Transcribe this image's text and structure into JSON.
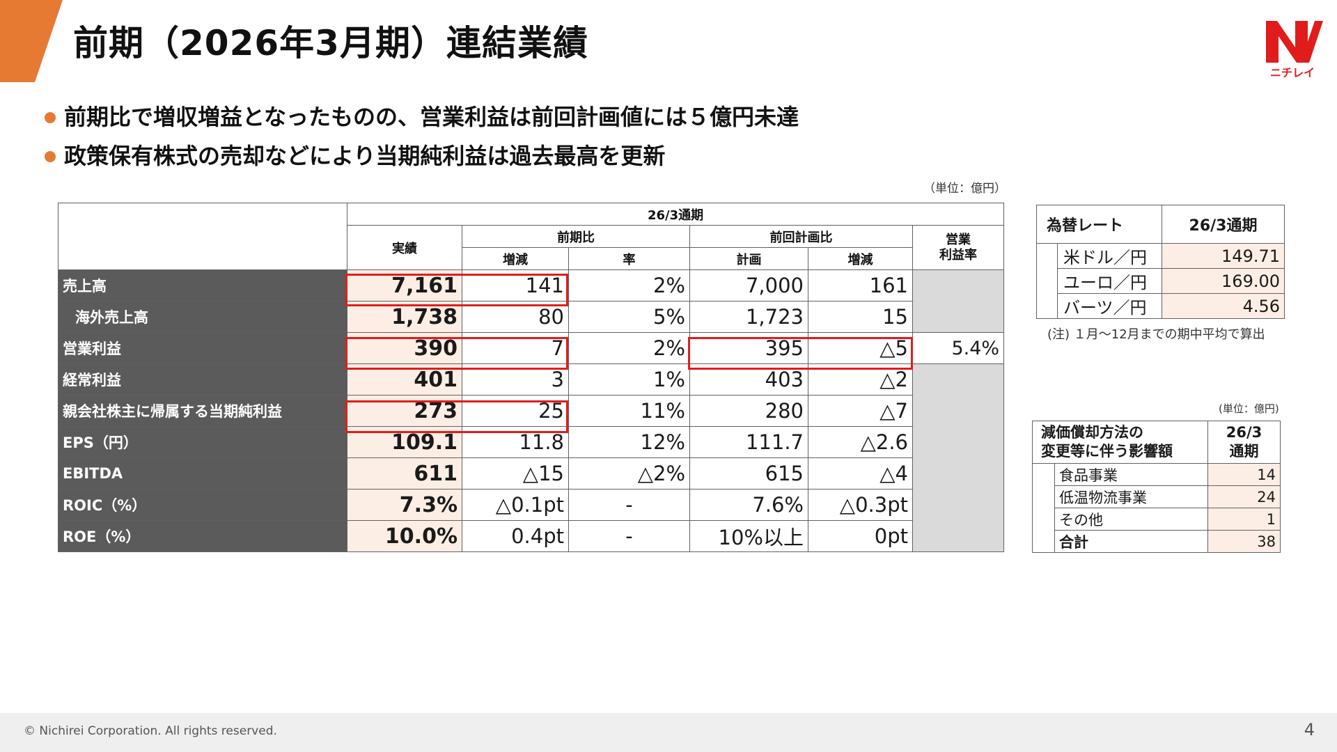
{
  "slide": {
    "title": "前期（2026年3月期）連結業績",
    "logo_text": "ニチレイ",
    "accent_color": "#E67A33",
    "highlight_color": "#E11C1C"
  },
  "bullets": [
    "前期比で増収増益となったものの、営業利益は前回計画値には５億円未達",
    "政策保有株式の売却などにより当期純利益は過去最高を更新"
  ],
  "main_table": {
    "unit": "（単位：億円）",
    "period_header": "26/3通期",
    "col_actual": "実績",
    "group_prev": "前期比",
    "group_plan": "前回計画比",
    "col_diff": "増減",
    "col_rate": "率",
    "col_plan": "計画",
    "col_plan_diff": "増減",
    "col_margin": "営業\n利益率",
    "rows": [
      {
        "label": "売上高",
        "actual": "7,161",
        "yoy_diff": "141",
        "yoy_rate": "2%",
        "plan": "7,000",
        "plan_diff": "161",
        "margin": ""
      },
      {
        "label": "海外売上高",
        "actual": "1,738",
        "yoy_diff": "80",
        "yoy_rate": "5%",
        "plan": "1,723",
        "plan_diff": "15",
        "margin": ""
      },
      {
        "label": "営業利益",
        "actual": "390",
        "yoy_diff": "7",
        "yoy_rate": "2%",
        "plan": "395",
        "plan_diff": "△5",
        "margin": "5.4%"
      },
      {
        "label": "経常利益",
        "actual": "401",
        "yoy_diff": "3",
        "yoy_rate": "1%",
        "plan": "403",
        "plan_diff": "△2",
        "margin": ""
      },
      {
        "label": "親会社株主に帰属する当期純利益",
        "actual": "273",
        "yoy_diff": "25",
        "yoy_rate": "11%",
        "plan": "280",
        "plan_diff": "△7",
        "margin": ""
      },
      {
        "label": "EPS（円）",
        "actual": "109.1",
        "yoy_diff": "11.8",
        "yoy_rate": "12%",
        "plan": "111.7",
        "plan_diff": "△2.6",
        "margin": ""
      },
      {
        "label": "EBITDA",
        "actual": "611",
        "yoy_diff": "△15",
        "yoy_rate": "△2%",
        "plan": "615",
        "plan_diff": "△4",
        "margin": ""
      },
      {
        "label": "ROIC（%）",
        "actual": "7.3%",
        "yoy_diff": "△0.1pt",
        "yoy_rate": "-",
        "plan": "7.6%",
        "plan_diff": "△0.3pt",
        "margin": ""
      },
      {
        "label": "ROE（%）",
        "actual": "10.0%",
        "yoy_diff": "0.4pt",
        "yoy_rate": "-",
        "plan": "10%以上",
        "plan_diff": "0pt",
        "margin": ""
      }
    ]
  },
  "fx_table": {
    "header_label": "為替レート",
    "header_period": "26/3通期",
    "rows": [
      {
        "label": "米ドル／円",
        "value": "149.71"
      },
      {
        "label": "ユーロ／円",
        "value": "169.00"
      },
      {
        "label": "バーツ／円",
        "value": "4.56"
      }
    ],
    "note": "(注) １月〜12月までの期中平均で算出"
  },
  "dep_table": {
    "unit": "(単位：億円)",
    "header_label": "減価償却方法の\n変更等に伴う影響額",
    "header_period": "26/3\n通期",
    "rows": [
      {
        "label": "食品事業",
        "value": "14"
      },
      {
        "label": "低温物流事業",
        "value": "24"
      },
      {
        "label": "その他",
        "value": "1"
      },
      {
        "label": "合計",
        "value": "38"
      }
    ]
  },
  "footer": {
    "copyright": "© Nichirei Corporation. All rights reserved.",
    "page_number": "4"
  }
}
